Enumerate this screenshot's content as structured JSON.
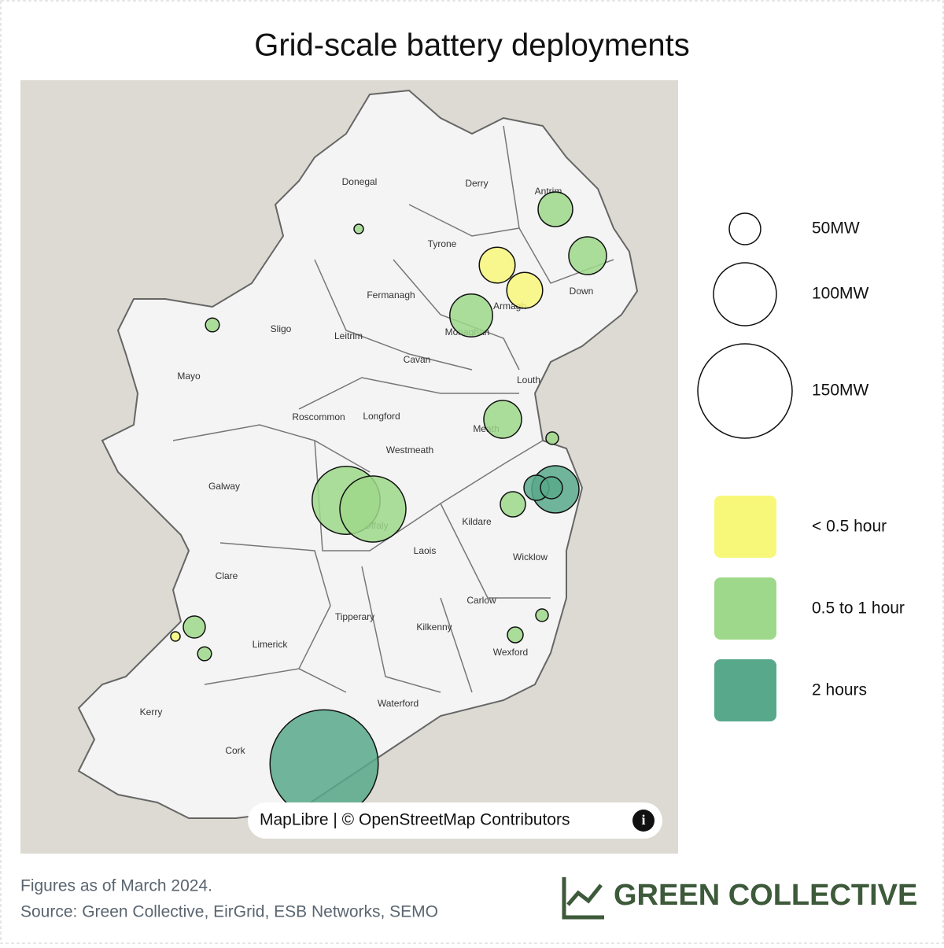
{
  "title": "Grid-scale battery deployments",
  "map": {
    "counties": [
      "Donegal",
      "Derry",
      "Antrim",
      "Tyrone",
      "Fermanagh",
      "Down",
      "Armagh",
      "Monaghan",
      "Sligo",
      "Leitrim",
      "Mayo",
      "Cavan",
      "Louth",
      "Roscommon",
      "Longford",
      "Meath",
      "Westmeath",
      "Galway",
      "Offaly",
      "Kildare",
      "Laois",
      "Wicklow",
      "Clare",
      "Tipperary",
      "Carlow",
      "Kilkenny",
      "Limerick",
      "Wexford",
      "Kerry",
      "Waterford",
      "Cork"
    ],
    "deployments": [
      {
        "mw": 55,
        "color": "#9ed88a"
      },
      {
        "mw": 60,
        "color": "#9ed88a"
      },
      {
        "mw": 57,
        "color": "#f7f77a"
      },
      {
        "mw": 57,
        "color": "#f7f77a"
      },
      {
        "mw": 68,
        "color": "#9ed88a"
      },
      {
        "mw": 60,
        "color": "#9ed88a"
      },
      {
        "mw": 20,
        "color": "#9ed88a"
      },
      {
        "mw": 75,
        "color": "#58a98b"
      },
      {
        "mw": 40,
        "color": "#58a98b"
      },
      {
        "mw": 35,
        "color": "#58a98b"
      },
      {
        "mw": 40,
        "color": "#9ed88a"
      },
      {
        "mw": 108,
        "color": "#9ed88a"
      },
      {
        "mw": 105,
        "color": "#9ed88a"
      },
      {
        "mw": 20,
        "color": "#9ed88a"
      },
      {
        "mw": 25,
        "color": "#9ed88a"
      },
      {
        "mw": 35,
        "color": "#9ed88a"
      },
      {
        "mw": 15,
        "color": "#f7f77a"
      },
      {
        "mw": 22,
        "color": "#9ed88a"
      },
      {
        "mw": 172,
        "color": "#58a98b"
      },
      {
        "mw": 15,
        "color": "#9ed88a"
      },
      {
        "mw": 22,
        "color": "#9ed88a"
      }
    ],
    "attribution": "MapLibre | © OpenStreetMap Contributors"
  },
  "legend": {
    "sizes": [
      {
        "value": 50,
        "label": "50MW"
      },
      {
        "value": 100,
        "label": "100MW"
      },
      {
        "value": 150,
        "label": "150MW"
      }
    ],
    "durations": [
      {
        "label": "< 0.5 hour",
        "color": "#f7f77a"
      },
      {
        "label": "0.5 to 1 hour",
        "color": "#9ed88a"
      },
      {
        "label": "2 hours",
        "color": "#58a98b"
      }
    ]
  },
  "footer": {
    "note": "Figures as of March 2024.",
    "source": "Source: Green Collective, EirGrid, ESB Networks, SEMO"
  },
  "brand": "GREEN COLLECTIVE"
}
